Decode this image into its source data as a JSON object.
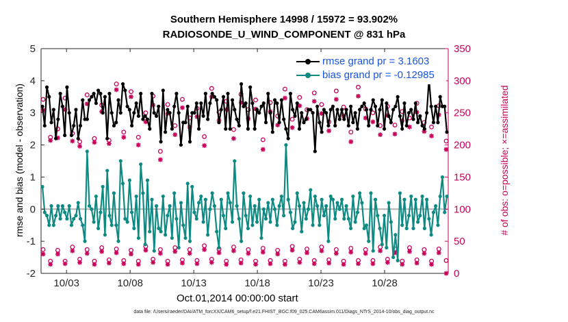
{
  "chart_data": {
    "type": "line",
    "title": "Southern Hemisphere 14998 / 15972 = 93.902%",
    "subtitle": "RADIOSONDE_U_WIND_COMPONENT @ 831 hPa",
    "xlabel": "Oct.01,2014 00:00:00 start",
    "ylabel_left": "rmse and bias (model - observation)",
    "ylabel_right": "# of obs: o=possible; ×=assimilated",
    "footnote": "data file: /Users/raeder/DAI/ATM_forcXX/CAM6_setup/f.e21.FHIST_BGC.f09_025.CAM6assim.011/Diags_NTrS_2014-10/obs_diag_output.nc",
    "x_ticks": [
      "10/03",
      "10/08",
      "10/13",
      "10/18",
      "10/23",
      "10/28"
    ],
    "x_tick_days": [
      3,
      8,
      13,
      18,
      23,
      28
    ],
    "xlim": [
      1,
      33
    ],
    "ylim_left": [
      -2,
      5
    ],
    "y_ticks_left": [
      -2,
      -1,
      0,
      1,
      2,
      3,
      4,
      5
    ],
    "ylim_right": [
      0,
      350
    ],
    "y_ticks_right": [
      0,
      50,
      100,
      150,
      200,
      250,
      300,
      350
    ],
    "grid": false,
    "legend_position": "top-right",
    "colors": {
      "rmse": "#000000",
      "bias": "#0e8a82",
      "obs": "#c8005a",
      "zero_line": "#b3b3b3",
      "legend_text": "#1a55e0"
    },
    "series": [
      {
        "name": "rmse grand pr = 3.1603",
        "values": [
          3.2,
          2.6,
          3.8,
          3.5,
          2.7,
          3.1,
          2.2,
          2.8,
          3.6,
          3.2,
          2.3,
          3.8,
          3.0,
          2.3,
          2.6,
          3.1,
          2.2,
          2.6,
          3.4,
          2.8,
          2.8,
          3.4,
          3.5,
          3.6,
          3.3,
          3.7,
          3.6,
          3.0,
          3.5,
          2.2,
          3.6,
          3.0,
          2.6,
          2.7,
          3.4,
          3.0,
          3.9,
          3.7,
          3.2,
          3.1,
          2.6,
          3.0,
          3.3,
          2.9,
          3.6,
          2.8,
          2.9,
          2.8,
          2.5,
          3.6,
          3.0,
          2.9,
          3.2,
          2.1,
          3.7,
          2.4,
          3.1,
          3.0,
          2.5,
          3.2,
          3.6,
          3.0,
          2.0,
          2.7,
          2.7,
          3.2,
          2.1,
          3.0,
          3.0,
          3.3,
          2.5,
          3.3,
          2.9,
          3.6,
          2.8,
          3.3,
          3.6,
          3.5,
          3.4,
          2.7,
          3.1,
          3.5,
          2.5,
          3.6,
          2.5,
          3.4,
          3.1,
          2.8,
          2.6,
          3.9,
          3.2,
          3.3,
          2.5,
          3.8,
          3.3,
          2.5,
          3.1,
          3.0,
          3.2,
          3.3,
          2.7,
          3.6,
          3.0,
          2.4,
          3.4,
          3.3,
          2.7,
          3.4,
          2.8,
          2.5,
          2.2,
          3.6,
          3.1,
          2.9,
          3.3,
          2.5,
          3.0,
          2.7,
          2.8,
          3.1,
          3.1,
          3.0,
          1.8,
          3.2,
          2.7,
          2.4,
          3.1,
          3.0,
          2.6,
          3.1,
          3.2,
          2.6,
          3.1,
          2.8,
          3.1,
          2.8,
          3.1,
          2.6,
          3.2,
          2.7,
          3.0,
          2.5,
          3.1,
          3.2,
          3.3,
          3.1,
          2.6,
          3.1,
          3.4,
          3.2,
          2.6,
          3.1,
          3.4,
          2.5,
          3.3,
          2.9,
          2.7,
          3.1,
          3.2,
          3.5,
          2.9,
          2.5,
          3.3,
          2.6,
          3.0,
          3.1,
          2.8,
          3.3,
          2.7,
          2.9,
          2.6,
          2.5,
          3.0,
          4.05,
          3.2,
          2.7,
          3.2,
          2.7,
          3.5,
          3.2,
          3.2,
          2.4
        ]
      },
      {
        "name": "bias grand pr = -0.12985",
        "values": [
          0.7,
          -0.1,
          -0.2,
          -0.5,
          0.1,
          -0.5,
          -0.2,
          0.1,
          -0.3,
          0.1,
          -0.1,
          -0.3,
          0.1,
          -0.5,
          -0.3,
          -0.2,
          0.2,
          -0.3,
          -0.5,
          -1.0,
          1.8,
          0.1,
          0.0,
          -0.4,
          0.4,
          -0.6,
          -0.1,
          0.7,
          -0.8,
          1.2,
          -0.2,
          -0.5,
          0.5,
          -0.5,
          -1.0,
          1.5,
          0.8,
          -0.3,
          -0.4,
          0.9,
          -0.1,
          -0.6,
          0.4,
          -0.9,
          1.4,
          0.5,
          -1.1,
          0.9,
          -0.7,
          0.3,
          -1.3,
          0.1,
          -0.6,
          -0.7,
          0.4,
          -0.8,
          -0.2,
          0.1,
          -0.9,
          0.5,
          -0.3,
          -1.2,
          0.2,
          -0.5,
          -0.9,
          0.8,
          -1.0,
          0.7,
          -0.1,
          -0.3,
          0.2,
          0.4,
          -0.4,
          0.3,
          -0.8,
          0.0,
          0.5,
          0.1,
          -0.7,
          -1.2,
          0.3,
          -0.2,
          -0.6,
          0.5,
          0.2,
          -0.4,
          1.5,
          0.1,
          -0.3,
          -1.0,
          0.5,
          -0.2,
          -0.6,
          0.4,
          -0.5,
          0.1,
          -0.4,
          0.3,
          -0.9,
          0.0,
          -0.3,
          0.2,
          -0.4,
          0.3,
          0.0,
          -0.5,
          0.1,
          0.4,
          -0.2,
          2.0,
          0.3,
          -0.1,
          -0.6,
          -0.4,
          0.5,
          0.1,
          -0.7,
          0.2,
          -0.3,
          0.0,
          0.6,
          -0.5,
          0.4,
          0.1,
          -0.5,
          0.3,
          -0.2,
          0.1,
          -1.0,
          0.4,
          0.3,
          -0.3,
          0.2,
          0.0,
          0.3,
          -0.3,
          0.1,
          -0.3,
          -0.6,
          0.4,
          -0.4,
          -0.1,
          0.5,
          0.2,
          -0.6,
          -0.5,
          -1.0,
          0.5,
          -1.3,
          0.3,
          -0.2,
          -0.6,
          -1.1,
          -0.2,
          -1.2,
          0.2,
          -0.4,
          -1.5,
          -0.8,
          -1.6,
          0.5,
          -0.5,
          0.3,
          -0.6,
          -0.2,
          0.4,
          -0.6,
          0.3,
          -0.4,
          -0.2,
          0.4,
          -0.6,
          0.3,
          -0.3,
          -0.8,
          -0.1,
          0.1,
          -0.5,
          0.4,
          1.0,
          -0.1,
          0.4
        ]
      }
    ],
    "obs_possible": [
      271,
      212,
      225,
      273,
      218,
      205,
      278,
      210,
      262,
      207,
      295,
      220,
      283,
      212,
      250,
      276,
      190,
      263,
      230,
      271,
      242,
      257,
      213,
      288,
      251,
      268,
      224,
      279,
      255,
      270,
      208,
      266,
      245,
      287,
      240,
      274,
      255,
      281,
      263,
      236,
      284,
      259,
      220,
      290,
      256,
      250,
      230,
      260,
      231,
      252,
      242,
      265,
      235,
      228,
      261,
      206
    ],
    "obs_assimilated": [
      254,
      207,
      211,
      255,
      206,
      198,
      264,
      204,
      252,
      202,
      286,
      212,
      275,
      200,
      236,
      262,
      177,
      249,
      216,
      258,
      228,
      244,
      199,
      275,
      238,
      255,
      210,
      266,
      241,
      256,
      193,
      252,
      231,
      273,
      227,
      261,
      241,
      268,
      249,
      222,
      271,
      245,
      205,
      276,
      242,
      236,
      216,
      246,
      217,
      238,
      228,
      251,
      221,
      214,
      247,
      193
    ],
    "obs_possible_low": [
      37,
      19,
      36,
      19,
      41,
      22,
      37,
      19,
      40,
      21,
      38,
      20,
      36,
      19,
      42,
      22,
      37,
      19,
      40,
      21,
      37,
      20,
      43,
      22,
      38,
      19,
      41,
      21,
      37,
      19,
      39,
      20,
      36,
      19,
      42,
      22,
      38,
      20,
      41,
      21,
      37,
      19,
      39,
      20,
      37,
      20,
      41,
      22,
      38,
      19,
      40,
      21,
      37,
      19,
      38,
      20
    ],
    "obs_assimilated_low": [
      30,
      14,
      30,
      15,
      35,
      17,
      31,
      14,
      34,
      16,
      32,
      15,
      30,
      14,
      36,
      17,
      31,
      14,
      34,
      16,
      31,
      15,
      37,
      17,
      32,
      14,
      35,
      16,
      31,
      14,
      33,
      15,
      30,
      14,
      36,
      17,
      32,
      15,
      35,
      16,
      31,
      14,
      33,
      15,
      31,
      15,
      35,
      17,
      32,
      14,
      34,
      16,
      31,
      14,
      32,
      0
    ]
  }
}
